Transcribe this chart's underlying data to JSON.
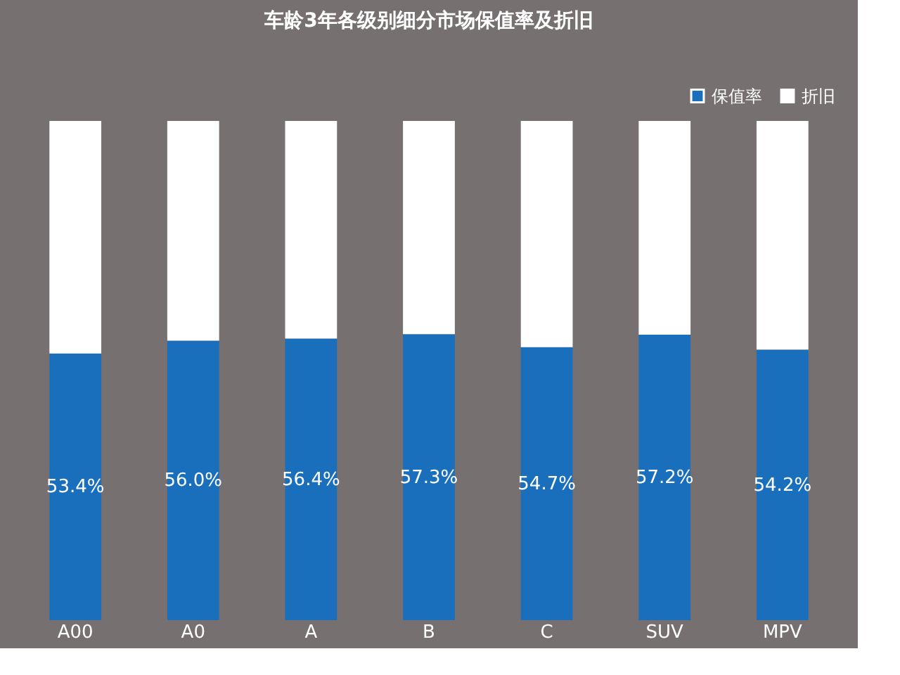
{
  "chart_data": {
    "type": "bar",
    "title": "车龄3年各级别细分市场保值率及折旧",
    "stacked": true,
    "legend": "top right",
    "grid": false,
    "categories": [
      "A00",
      "A0",
      "A",
      "B",
      "C",
      "SUV",
      "MPV"
    ],
    "series": [
      {
        "name": "保值率",
        "color": "#1a6fbd",
        "values": [
          53.4,
          56.0,
          56.4,
          57.3,
          54.7,
          57.2,
          54.2
        ],
        "value_labels": [
          "53.4%",
          "56.0%",
          "56.4%",
          "57.3%",
          "54.7%",
          "57.2%",
          "54.2%"
        ]
      },
      {
        "name": "折旧",
        "color": "#ffffff",
        "values": [
          46.6,
          44.0,
          43.6,
          42.7,
          45.3,
          42.8,
          45.8
        ]
      }
    ]
  }
}
